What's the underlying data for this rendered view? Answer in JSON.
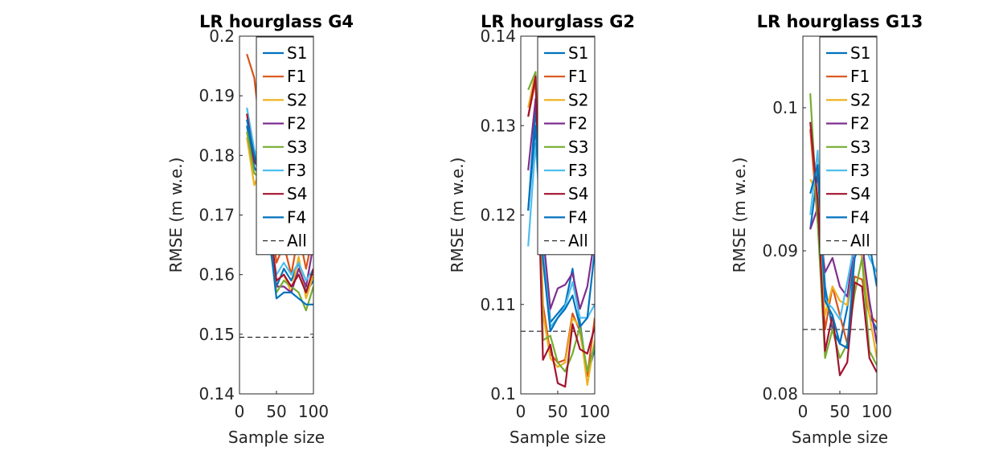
{
  "chart_data": [
    {
      "type": "line",
      "title": "LR hourglass G4",
      "xlabel": "Sample size",
      "ylabel": "RMSE (m w.e.)",
      "xlim": [
        0,
        100
      ],
      "ylim": [
        0.14,
        0.2
      ],
      "xticks": [
        "0",
        "50",
        "100"
      ],
      "yticks": [
        "0.14",
        "0.15",
        "0.16",
        "0.17",
        "0.18",
        "0.19",
        "0.2"
      ],
      "legend": "top-right",
      "x": [
        10,
        20,
        30,
        40,
        50,
        60,
        70,
        80,
        90,
        100
      ],
      "series": [
        {
          "name": "S1",
          "color": "#0072BD",
          "style": "solid",
          "values": [
            0.185,
            0.178,
            0.176,
            0.169,
            0.158,
            0.161,
            0.159,
            0.162,
            0.157,
            0.159
          ]
        },
        {
          "name": "F1",
          "color": "#D95319",
          "style": "solid",
          "values": [
            0.197,
            0.193,
            0.182,
            0.172,
            0.162,
            0.165,
            0.16,
            0.167,
            0.161,
            0.167
          ]
        },
        {
          "name": "S2",
          "color": "#EDB120",
          "style": "solid",
          "values": [
            0.183,
            0.175,
            0.178,
            0.165,
            0.159,
            0.16,
            0.157,
            0.163,
            0.156,
            0.16
          ]
        },
        {
          "name": "F2",
          "color": "#7E2F8E",
          "style": "solid",
          "values": [
            0.186,
            0.18,
            0.179,
            0.168,
            0.158,
            0.158,
            0.157,
            0.161,
            0.158,
            0.165
          ]
        },
        {
          "name": "S3",
          "color": "#77AC30",
          "style": "solid",
          "values": [
            0.184,
            0.177,
            0.176,
            0.166,
            0.157,
            0.159,
            0.158,
            0.157,
            0.154,
            0.158
          ]
        },
        {
          "name": "F3",
          "color": "#4DBEEE",
          "style": "solid",
          "values": [
            0.188,
            0.181,
            0.177,
            0.167,
            0.16,
            0.162,
            0.16,
            0.162,
            0.159,
            0.161
          ]
        },
        {
          "name": "S4",
          "color": "#A2142F",
          "style": "solid",
          "values": [
            0.187,
            0.179,
            0.177,
            0.17,
            0.159,
            0.16,
            0.158,
            0.16,
            0.157,
            0.161
          ]
        },
        {
          "name": "F4",
          "color": "#0072BD",
          "style": "solid",
          "values": [
            0.186,
            0.18,
            0.175,
            0.167,
            0.156,
            0.157,
            0.157,
            0.156,
            0.155,
            0.155
          ]
        }
      ],
      "reference": {
        "name": "All",
        "value": 0.1495,
        "color": "#000000",
        "style": "dashed"
      }
    },
    {
      "type": "line",
      "title": "LR hourglass G2",
      "xlabel": "Sample size",
      "ylabel": "RMSE (m w.e.)",
      "xlim": [
        0,
        100
      ],
      "ylim": [
        0.1,
        0.14
      ],
      "xticks": [
        "0",
        "50",
        "100"
      ],
      "yticks": [
        "0.1",
        "0.11",
        "0.12",
        "0.13",
        "0.14"
      ],
      "legend": "top-right",
      "x": [
        10,
        20,
        30,
        40,
        50,
        60,
        70,
        80,
        90,
        100
      ],
      "series": [
        {
          "name": "S1",
          "color": "#0072BD",
          "style": "solid",
          "values": [
            0.1205,
            0.132,
            0.118,
            0.108,
            0.109,
            0.11,
            0.114,
            0.108,
            0.102,
            0.105
          ]
        },
        {
          "name": "F1",
          "color": "#D95319",
          "style": "solid",
          "values": [
            0.131,
            0.135,
            0.11,
            0.1045,
            0.1035,
            0.1038,
            0.109,
            0.107,
            0.102,
            0.1085
          ]
        },
        {
          "name": "S2",
          "color": "#EDB120",
          "style": "solid",
          "values": [
            0.132,
            0.136,
            0.109,
            0.104,
            0.103,
            0.1035,
            0.1085,
            0.1075,
            0.101,
            0.106
          ]
        },
        {
          "name": "F2",
          "color": "#7E2F8E",
          "style": "solid",
          "values": [
            0.125,
            0.133,
            0.118,
            0.1095,
            0.1118,
            0.1122,
            0.1135,
            0.1095,
            0.112,
            0.1175
          ]
        },
        {
          "name": "S3",
          "color": "#77AC30",
          "style": "solid",
          "values": [
            0.134,
            0.136,
            0.106,
            0.1065,
            0.1035,
            0.1025,
            0.1045,
            0.1075,
            0.1025,
            0.1055
          ]
        },
        {
          "name": "F3",
          "color": "#4DBEEE",
          "style": "solid",
          "values": [
            0.1165,
            0.128,
            0.116,
            0.1075,
            0.1085,
            0.1098,
            0.1125,
            0.1085,
            0.1085,
            0.11
          ]
        },
        {
          "name": "S4",
          "color": "#A2142F",
          "style": "solid",
          "values": [
            0.131,
            0.1355,
            0.1038,
            0.1055,
            0.1012,
            0.1008,
            0.1078,
            0.105,
            0.1045,
            0.1075
          ]
        },
        {
          "name": "F4",
          "color": "#0072BD",
          "style": "solid",
          "values": [
            0.1205,
            0.13,
            0.115,
            0.107,
            0.1085,
            0.1095,
            0.111,
            0.1075,
            0.1085,
            0.116
          ]
        }
      ],
      "reference": {
        "name": "All",
        "value": 0.107,
        "color": "#000000",
        "style": "dashed"
      }
    },
    {
      "type": "line",
      "title": "LR hourglass G13",
      "xlabel": "Sample size",
      "ylabel": "RMSE (m w.e.)",
      "xlim": [
        0,
        100
      ],
      "ylim": [
        0.08,
        0.105
      ],
      "xticks": [
        "0",
        "50",
        "100"
      ],
      "yticks": [
        "0.08",
        "0.09",
        "0.1"
      ],
      "legend": "top-right",
      "x": [
        10,
        20,
        30,
        40,
        50,
        60,
        70,
        80,
        90,
        100
      ],
      "series": [
        {
          "name": "S1",
          "color": "#0072BD",
          "style": "solid",
          "values": [
            0.0915,
            0.0955,
            0.0875,
            0.0845,
            0.0835,
            0.086,
            0.0895,
            0.091,
            0.0855,
            0.0845
          ]
        },
        {
          "name": "F1",
          "color": "#D95319",
          "style": "solid",
          "values": [
            0.0985,
            0.092,
            0.0845,
            0.0875,
            0.0855,
            0.0835,
            0.0882,
            0.088,
            0.0855,
            0.085
          ]
        },
        {
          "name": "S2",
          "color": "#EDB120",
          "style": "solid",
          "values": [
            0.095,
            0.094,
            0.0855,
            0.0875,
            0.0865,
            0.0862,
            0.091,
            0.0895,
            0.0855,
            0.0825
          ]
        },
        {
          "name": "F2",
          "color": "#7E2F8E",
          "style": "solid",
          "values": [
            0.0915,
            0.093,
            0.0885,
            0.0895,
            0.0875,
            0.0868,
            0.0905,
            0.0905,
            0.0865,
            0.0835
          ]
        },
        {
          "name": "S3",
          "color": "#77AC30",
          "style": "solid",
          "values": [
            0.101,
            0.092,
            0.0825,
            0.0845,
            0.0825,
            0.0835,
            0.087,
            0.0895,
            0.083,
            0.082
          ]
        },
        {
          "name": "F3",
          "color": "#4DBEEE",
          "style": "solid",
          "values": [
            0.0925,
            0.097,
            0.0865,
            0.086,
            0.0852,
            0.0878,
            0.0905,
            0.0915,
            0.0895,
            0.0885
          ]
        },
        {
          "name": "S4",
          "color": "#A2142F",
          "style": "solid",
          "values": [
            0.099,
            0.0935,
            0.083,
            0.0855,
            0.0813,
            0.0822,
            0.0878,
            0.0875,
            0.0825,
            0.0815
          ]
        },
        {
          "name": "F4",
          "color": "#0072BD",
          "style": "solid",
          "values": [
            0.094,
            0.096,
            0.0865,
            0.0855,
            0.0835,
            0.0832,
            0.0895,
            0.091,
            0.0905,
            0.0875
          ]
        }
      ],
      "reference": {
        "name": "All",
        "value": 0.0845,
        "color": "#000000",
        "style": "dashed"
      }
    }
  ]
}
